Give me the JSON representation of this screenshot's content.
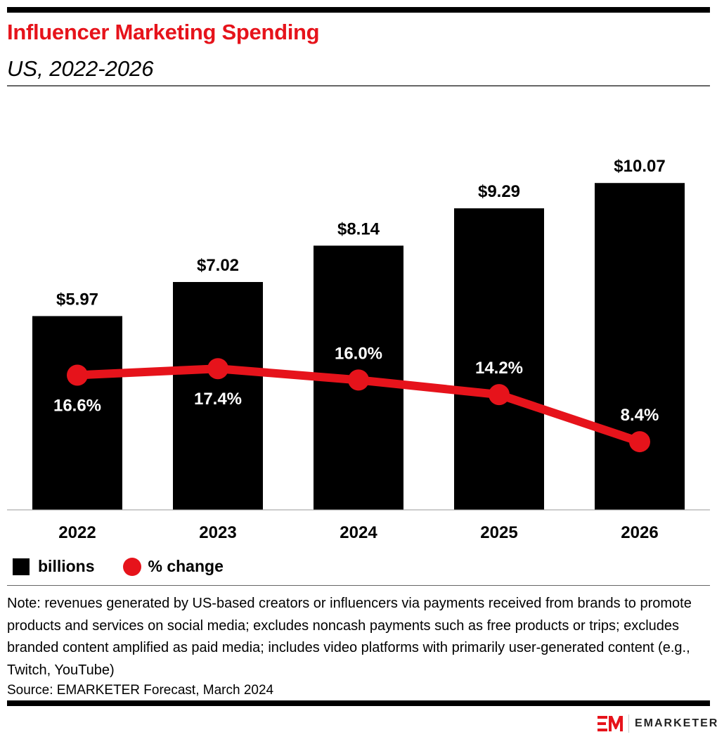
{
  "header": {
    "title": "Influencer Marketing Spending",
    "subtitle": "US, 2022-2026"
  },
  "chart_data": {
    "type": "bar+line",
    "categories": [
      "2022",
      "2023",
      "2024",
      "2025",
      "2026"
    ],
    "series": [
      {
        "name": "billions",
        "type": "bar",
        "values": [
          5.97,
          7.02,
          8.14,
          9.29,
          10.07
        ],
        "labels": [
          "$5.97",
          "$7.02",
          "$8.14",
          "$9.29",
          "$10.07"
        ],
        "color": "#000000"
      },
      {
        "name": "% change",
        "type": "line",
        "values": [
          16.6,
          17.4,
          16.0,
          14.2,
          8.4
        ],
        "labels": [
          "16.6%",
          "17.4%",
          "16.0%",
          "14.2%",
          "8.4%"
        ],
        "label_position": [
          "below",
          "below",
          "above",
          "above",
          "above"
        ],
        "color": "#e6131b"
      }
    ],
    "bar_axis_range": [
      0,
      13
    ],
    "line_axis_range": [
      0,
      52
    ],
    "grid": false,
    "legend": "bottom-left"
  },
  "legend": {
    "bars": "billions",
    "line": "% change"
  },
  "footer": {
    "note": "Note: revenues generated by US-based creators or influencers via payments received from brands to promote products and services on social media; excludes noncash payments such as free products or trips; excludes branded content amplified as paid media; includes video platforms with primarily user-generated content (e.g., Twitch, YouTube)",
    "source": "Source: EMARKETER Forecast, March 2024",
    "logo": "EMARKETER"
  },
  "colors": {
    "accent": "#e6131b"
  }
}
